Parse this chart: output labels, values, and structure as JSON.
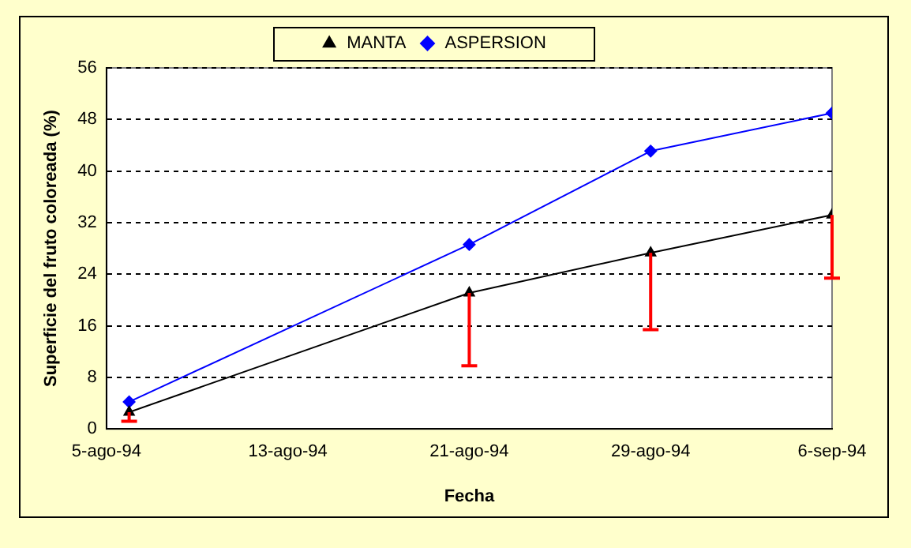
{
  "chart_data": {
    "type": "line",
    "xlabel": "Fecha",
    "ylabel": "Superficie del fruto coloreada (%)",
    "xlim": [
      "1994-08-05",
      "1994-09-06"
    ],
    "xticks": [
      {
        "value": "1994-08-05",
        "label": "5-ago-94"
      },
      {
        "value": "1994-08-13",
        "label": "13-ago-94"
      },
      {
        "value": "1994-08-21",
        "label": "21-ago-94"
      },
      {
        "value": "1994-08-29",
        "label": "29-ago-94"
      },
      {
        "value": "1994-09-06",
        "label": "6-sep-94"
      }
    ],
    "ylim": [
      0,
      56
    ],
    "yticks": [
      0,
      8,
      16,
      24,
      32,
      40,
      48,
      56
    ],
    "grid": "y",
    "legend": "top",
    "series": [
      {
        "name": "MANTA",
        "color": "#000000",
        "marker": "triangle",
        "x": [
          "1994-08-06",
          "1994-08-21",
          "1994-08-29",
          "1994-09-06"
        ],
        "values": [
          2.6,
          21.1,
          27.3,
          33.2
        ],
        "errors": [
          [
            1.2,
            2.6
          ],
          [
            9.8,
            21.1
          ],
          [
            15.4,
            27.3
          ],
          [
            23.4,
            33.2
          ]
        ]
      },
      {
        "name": "ASPERSION",
        "color": "#0000ff",
        "marker": "diamond",
        "x": [
          "1994-08-06",
          "1994-08-21",
          "1994-08-29",
          "1994-09-06"
        ],
        "values": [
          4.2,
          28.6,
          43.1,
          49.0
        ]
      }
    ]
  }
}
